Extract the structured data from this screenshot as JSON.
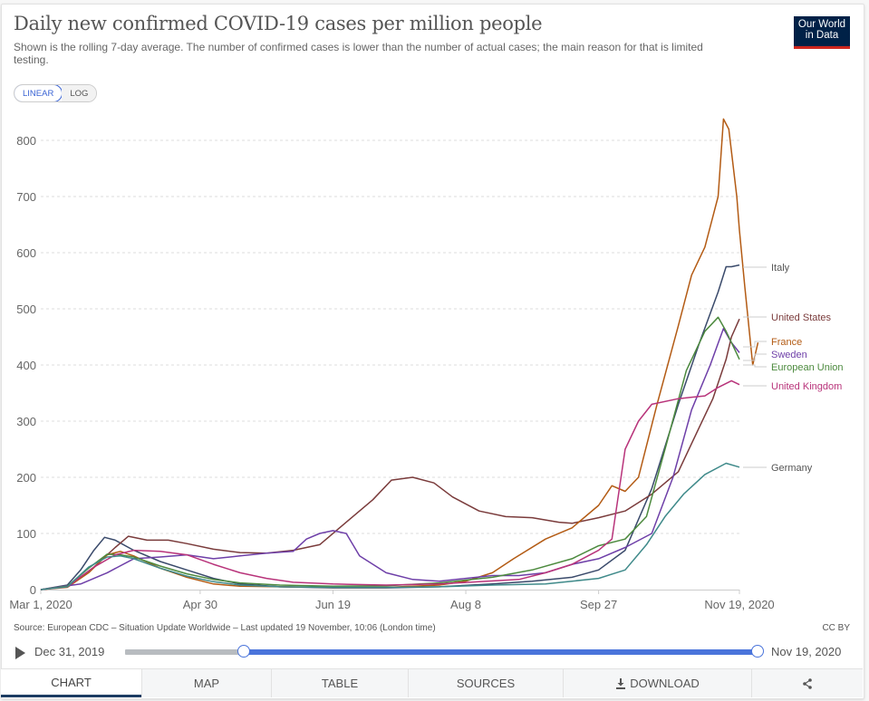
{
  "header": {
    "title": "Daily new confirmed COVID-19 cases per million people",
    "subtitle": "Shown is the rolling 7-day average. The number of confirmed cases is lower than the number of actual cases; the main reason for that is limited testing.",
    "logo_line1": "Our World",
    "logo_line2": "in Data",
    "logo_color": "#002147",
    "logo_accent": "#ce261e"
  },
  "scale_toggle": {
    "linear_label": "LINEAR",
    "log_label": "LOG",
    "selected": "LINEAR"
  },
  "chart_data": {
    "type": "line",
    "title": "Daily new confirmed COVID-19 cases per million people",
    "xlabel": "",
    "ylabel": "",
    "x_start": "2020-03-01",
    "x_end": "2020-11-19",
    "x_ticks": [
      {
        "label": "Mar 1, 2020",
        "day": 0
      },
      {
        "label": "Apr 30",
        "day": 60
      },
      {
        "label": "Jun 19",
        "day": 110
      },
      {
        "label": "Aug 8",
        "day": 160
      },
      {
        "label": "Sep 27",
        "day": 210
      },
      {
        "label": "Nov 19, 2020",
        "day": 263
      }
    ],
    "y_ticks": [
      0,
      100,
      200,
      300,
      400,
      500,
      600,
      700,
      800
    ],
    "ylim": [
      0,
      830
    ],
    "grid": "horizontal-dashed",
    "legend": "right (line-end labels)",
    "series": [
      {
        "name": "Italy",
        "color": "#3a4a6b",
        "points": [
          [
            0,
            0
          ],
          [
            10,
            8
          ],
          [
            15,
            35
          ],
          [
            20,
            70
          ],
          [
            24,
            93
          ],
          [
            28,
            88
          ],
          [
            35,
            70
          ],
          [
            45,
            50
          ],
          [
            55,
            35
          ],
          [
            65,
            20
          ],
          [
            75,
            10
          ],
          [
            90,
            5
          ],
          [
            110,
            3
          ],
          [
            130,
            3
          ],
          [
            150,
            5
          ],
          [
            170,
            10
          ],
          [
            185,
            15
          ],
          [
            200,
            22
          ],
          [
            210,
            35
          ],
          [
            220,
            70
          ],
          [
            230,
            180
          ],
          [
            240,
            330
          ],
          [
            248,
            440
          ],
          [
            255,
            530
          ],
          [
            258,
            575
          ],
          [
            260,
            575
          ],
          [
            263,
            578
          ]
        ]
      },
      {
        "name": "United States",
        "color": "#7a3b3b",
        "points": [
          [
            0,
            0
          ],
          [
            10,
            5
          ],
          [
            20,
            40
          ],
          [
            28,
            75
          ],
          [
            33,
            95
          ],
          [
            40,
            88
          ],
          [
            48,
            88
          ],
          [
            55,
            82
          ],
          [
            65,
            72
          ],
          [
            75,
            66
          ],
          [
            85,
            65
          ],
          [
            95,
            70
          ],
          [
            105,
            80
          ],
          [
            115,
            120
          ],
          [
            125,
            160
          ],
          [
            132,
            195
          ],
          [
            140,
            200
          ],
          [
            148,
            190
          ],
          [
            155,
            165
          ],
          [
            165,
            140
          ],
          [
            175,
            130
          ],
          [
            185,
            128
          ],
          [
            195,
            120
          ],
          [
            200,
            118
          ],
          [
            210,
            128
          ],
          [
            220,
            140
          ],
          [
            230,
            170
          ],
          [
            240,
            210
          ],
          [
            248,
            290
          ],
          [
            253,
            340
          ],
          [
            258,
            410
          ],
          [
            260,
            450
          ],
          [
            263,
            482
          ]
        ]
      },
      {
        "name": "France",
        "color": "#b35b14",
        "points": [
          [
            0,
            0
          ],
          [
            10,
            4
          ],
          [
            18,
            30
          ],
          [
            25,
            62
          ],
          [
            30,
            68
          ],
          [
            35,
            60
          ],
          [
            45,
            38
          ],
          [
            55,
            22
          ],
          [
            65,
            10
          ],
          [
            75,
            6
          ],
          [
            90,
            5
          ],
          [
            110,
            4
          ],
          [
            130,
            4
          ],
          [
            150,
            8
          ],
          [
            160,
            15
          ],
          [
            170,
            30
          ],
          [
            178,
            55
          ],
          [
            190,
            90
          ],
          [
            200,
            110
          ],
          [
            210,
            150
          ],
          [
            215,
            185
          ],
          [
            220,
            175
          ],
          [
            225,
            200
          ],
          [
            232,
            330
          ],
          [
            240,
            470
          ],
          [
            245,
            560
          ],
          [
            250,
            610
          ],
          [
            255,
            700
          ],
          [
            257,
            838
          ],
          [
            259,
            820
          ],
          [
            262,
            700
          ],
          [
            263,
            640
          ],
          [
            265,
            540
          ],
          [
            268,
            400
          ],
          [
            270,
            440
          ]
        ]
      },
      {
        "name": "Sweden",
        "color": "#6e3fa8",
        "points": [
          [
            0,
            0
          ],
          [
            15,
            10
          ],
          [
            25,
            30
          ],
          [
            35,
            55
          ],
          [
            45,
            58
          ],
          [
            55,
            62
          ],
          [
            65,
            55
          ],
          [
            75,
            60
          ],
          [
            85,
            65
          ],
          [
            95,
            68
          ],
          [
            100,
            90
          ],
          [
            105,
            100
          ],
          [
            110,
            105
          ],
          [
            115,
            100
          ],
          [
            120,
            60
          ],
          [
            130,
            30
          ],
          [
            140,
            18
          ],
          [
            150,
            15
          ],
          [
            160,
            20
          ],
          [
            170,
            25
          ],
          [
            180,
            25
          ],
          [
            190,
            30
          ],
          [
            200,
            45
          ],
          [
            210,
            55
          ],
          [
            220,
            75
          ],
          [
            230,
            100
          ],
          [
            238,
            200
          ],
          [
            245,
            320
          ],
          [
            252,
            400
          ],
          [
            257,
            465
          ],
          [
            260,
            440
          ],
          [
            263,
            422
          ]
        ]
      },
      {
        "name": "European Union",
        "color": "#4c8a3e",
        "points": [
          [
            0,
            0
          ],
          [
            10,
            6
          ],
          [
            18,
            38
          ],
          [
            25,
            63
          ],
          [
            30,
            62
          ],
          [
            35,
            58
          ],
          [
            45,
            42
          ],
          [
            55,
            28
          ],
          [
            65,
            18
          ],
          [
            75,
            12
          ],
          [
            90,
            8
          ],
          [
            110,
            6
          ],
          [
            130,
            7
          ],
          [
            150,
            12
          ],
          [
            170,
            22
          ],
          [
            185,
            35
          ],
          [
            200,
            55
          ],
          [
            210,
            78
          ],
          [
            220,
            90
          ],
          [
            228,
            130
          ],
          [
            235,
            250
          ],
          [
            243,
            390
          ],
          [
            250,
            460
          ],
          [
            255,
            485
          ],
          [
            258,
            460
          ],
          [
            262,
            420
          ],
          [
            263,
            410
          ]
        ]
      },
      {
        "name": "United Kingdom",
        "color": "#b8337a",
        "points": [
          [
            0,
            0
          ],
          [
            10,
            5
          ],
          [
            20,
            40
          ],
          [
            28,
            62
          ],
          [
            35,
            70
          ],
          [
            45,
            68
          ],
          [
            55,
            62
          ],
          [
            65,
            45
          ],
          [
            75,
            30
          ],
          [
            85,
            20
          ],
          [
            95,
            13
          ],
          [
            110,
            10
          ],
          [
            130,
            8
          ],
          [
            150,
            10
          ],
          [
            165,
            14
          ],
          [
            180,
            18
          ],
          [
            190,
            30
          ],
          [
            200,
            45
          ],
          [
            210,
            70
          ],
          [
            215,
            90
          ],
          [
            220,
            250
          ],
          [
            225,
            300
          ],
          [
            230,
            330
          ],
          [
            240,
            340
          ],
          [
            250,
            345
          ],
          [
            255,
            360
          ],
          [
            260,
            372
          ],
          [
            263,
            365
          ]
        ]
      },
      {
        "name": "Germany",
        "color": "#3f8a8a",
        "points": [
          [
            0,
            0
          ],
          [
            10,
            5
          ],
          [
            18,
            40
          ],
          [
            25,
            58
          ],
          [
            30,
            60
          ],
          [
            35,
            55
          ],
          [
            45,
            38
          ],
          [
            55,
            24
          ],
          [
            65,
            14
          ],
          [
            75,
            8
          ],
          [
            90,
            5
          ],
          [
            110,
            4
          ],
          [
            130,
            4
          ],
          [
            150,
            5
          ],
          [
            170,
            8
          ],
          [
            190,
            10
          ],
          [
            200,
            15
          ],
          [
            210,
            20
          ],
          [
            220,
            35
          ],
          [
            228,
            80
          ],
          [
            235,
            130
          ],
          [
            242,
            170
          ],
          [
            250,
            205
          ],
          [
            258,
            225
          ],
          [
            263,
            218
          ]
        ]
      }
    ],
    "legend_labels": [
      {
        "name": "Italy",
        "color": "#555555"
      },
      {
        "name": "United States",
        "color": "#7a3b3b"
      },
      {
        "name": "France",
        "color": "#b35b14"
      },
      {
        "name": "Sweden",
        "color": "#6e3fa8"
      },
      {
        "name": "European Union",
        "color": "#4c8a3e"
      },
      {
        "name": "United Kingdom",
        "color": "#b8337a"
      },
      {
        "name": "Germany",
        "color": "#555555"
      }
    ]
  },
  "footer": {
    "source": "Source: European CDC – Situation Update Worldwide – Last updated 19 November, 10:06 (London time)",
    "license": "CC BY"
  },
  "timeline": {
    "start_label": "Dec 31, 2019",
    "end_label": "Nov 19, 2020",
    "range_start_fraction": 0.188,
    "range_end_fraction": 1.0
  },
  "tabs": [
    {
      "label": "CHART",
      "active": true
    },
    {
      "label": "MAP"
    },
    {
      "label": "TABLE"
    },
    {
      "label": "SOURCES"
    },
    {
      "label": "DOWNLOAD",
      "icon": "download-icon"
    },
    {
      "label": "",
      "icon": "share-icon"
    }
  ]
}
